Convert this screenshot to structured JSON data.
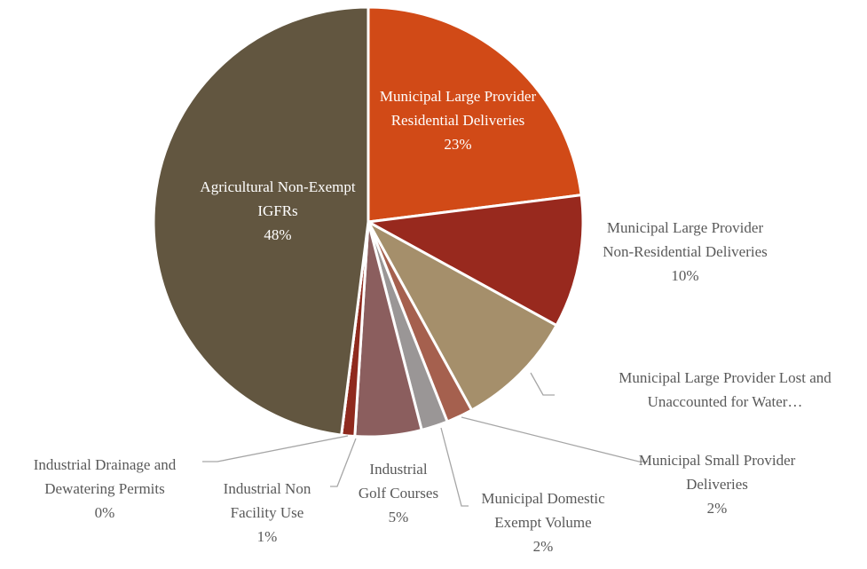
{
  "chart_data": {
    "type": "pie",
    "categories": [
      "Municipal Large Provider Residential Deliveries",
      "Municipal Large Provider Non-Residential Deliveries",
      "Municipal Large Provider Lost and Unaccounted for Water…",
      "Municipal Small Provider Deliveries",
      "Municipal Domestic Exempt Volume",
      "Industrial Golf Courses",
      "Industrial Non Facility Use",
      "Industrial Drainage and Dewatering Permits",
      "Agricultural Non-Exempt IGFRs"
    ],
    "values": [
      23,
      10,
      9,
      2,
      2,
      5,
      1,
      0,
      48
    ],
    "value_labels": [
      "23%",
      "10%",
      null,
      "2%",
      "2%",
      "5%",
      "1%",
      "0%",
      "48%"
    ],
    "colors": [
      "#d14a17",
      "#98291e",
      "#a58f6b",
      "#a5604e",
      "#9a9696",
      "#8b5e5e",
      "#8f2a1e",
      "#6b4e3e",
      "#625640"
    ]
  }
}
